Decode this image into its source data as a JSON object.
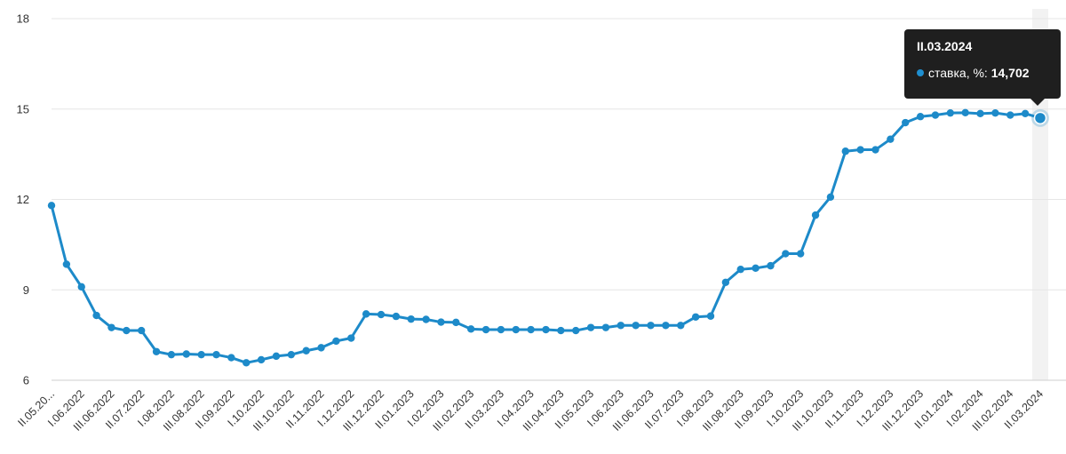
{
  "chart_data": {
    "type": "line",
    "title": "",
    "xlabel": "",
    "ylabel": "",
    "ylim": [
      6,
      18
    ],
    "yticks": [
      6,
      9,
      12,
      15,
      18
    ],
    "grid": "horizontal",
    "series": [
      {
        "name": "ставка, %",
        "color": "#1d8ac9",
        "values": [
          11.8,
          9.85,
          9.1,
          8.15,
          7.75,
          7.65,
          7.65,
          6.95,
          6.85,
          6.87,
          6.85,
          6.85,
          6.75,
          6.58,
          6.68,
          6.8,
          6.85,
          6.98,
          7.08,
          7.3,
          7.4,
          8.2,
          8.18,
          8.12,
          8.03,
          8.02,
          7.93,
          7.92,
          7.7,
          7.68,
          7.68,
          7.68,
          7.68,
          7.68,
          7.65,
          7.65,
          7.75,
          7.75,
          7.82,
          7.82,
          7.82,
          7.82,
          7.82,
          8.1,
          8.13,
          9.25,
          9.68,
          9.72,
          9.8,
          10.2,
          10.2,
          11.48,
          12.08,
          13.6,
          13.65,
          13.65,
          14.0,
          14.55,
          14.75,
          14.8,
          14.87,
          14.88,
          14.85,
          14.87,
          14.8,
          14.85,
          14.702
        ]
      }
    ],
    "x_labels": [
      "II.05.20...",
      "I.06.2022",
      "III.06.2022",
      "II.07.2022",
      "I.08.2022",
      "III.08.2022",
      "II.09.2022",
      "I.10.2022",
      "III.10.2022",
      "II.11.2022",
      "I.12.2022",
      "III.12.2022",
      "II.01.2023",
      "I.02.2023",
      "III.02.2023",
      "II.03.2023",
      "I.04.2023",
      "III.04.2023",
      "II.05.2023",
      "I.06.2023",
      "III.06.2023",
      "II.07.2023",
      "I.08.2023",
      "III.08.2023",
      "II.09.2023",
      "I.10.2023",
      "III.10.2023",
      "II.11.2023",
      "I.12.2023",
      "III.12.2023",
      "II.01.2024",
      "I.02.2024",
      "III.02.2024",
      "II.03.2024"
    ],
    "tooltip": {
      "date": "II.03.2024",
      "series_label": "ставка, %:",
      "value": "14,702"
    }
  }
}
